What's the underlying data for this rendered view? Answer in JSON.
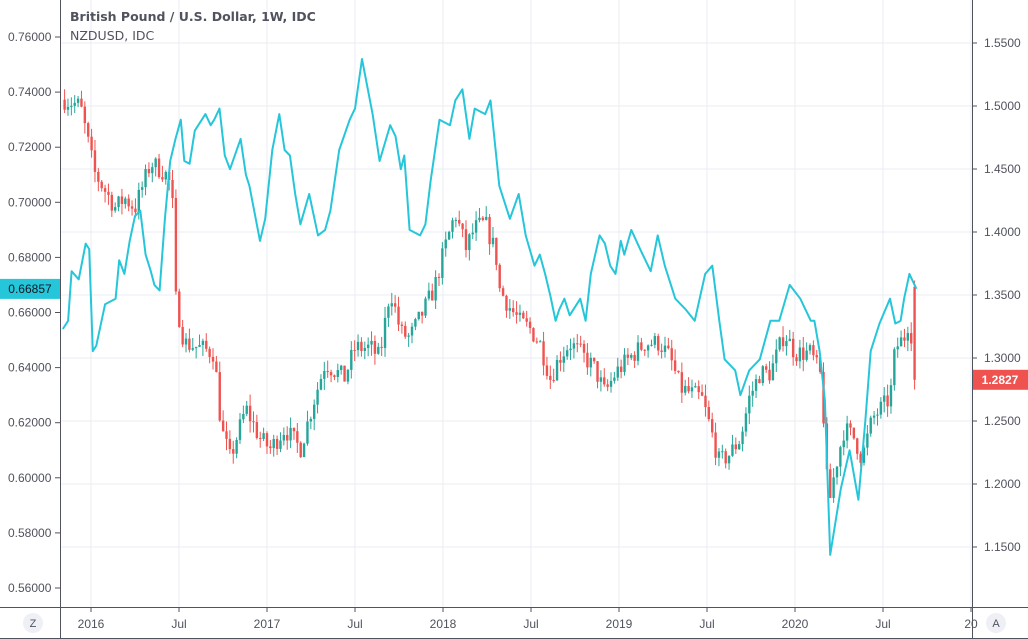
{
  "legend": {
    "main": "British Pound / U.S. Dollar, 1W, IDC",
    "overlay": "NZDUSD, IDC"
  },
  "buttons": {
    "left": "Z",
    "right": "A"
  },
  "colors": {
    "up": "#26a69a",
    "down": "#ef5350",
    "line": "#26c6da",
    "grid": "#e9eef3",
    "axis": "#50535e"
  },
  "chart_data": {
    "type": "candlestick+line",
    "title": "British Pound / U.S. Dollar, 1W, IDC",
    "x_ticks": [
      {
        "label": "2016",
        "t": 2016.0
      },
      {
        "label": "Jul",
        "t": 2016.5
      },
      {
        "label": "2017",
        "t": 2017.0
      },
      {
        "label": "Jul",
        "t": 2017.5
      },
      {
        "label": "2018",
        "t": 2018.0
      },
      {
        "label": "Jul",
        "t": 2018.5
      },
      {
        "label": "2019",
        "t": 2019.0
      },
      {
        "label": "Jul",
        "t": 2019.5
      },
      {
        "label": "2020",
        "t": 2020.0
      },
      {
        "label": "Jul",
        "t": 2020.5
      },
      {
        "label": "20",
        "t": 2021.0
      }
    ],
    "xlim": [
      2015.82,
      2021.05
    ],
    "left_axis": {
      "ticks": [
        "0.76000",
        "0.74000",
        "0.72000",
        "0.70000",
        "0.68000",
        "0.66000",
        "0.64000",
        "0.62000",
        "0.60000",
        "0.58000",
        "0.56000"
      ],
      "ylim": [
        0.56,
        0.76
      ]
    },
    "right_axis": {
      "ticks": [
        "1.5500",
        "1.5000",
        "1.4500",
        "1.4000",
        "1.3500",
        "1.3000",
        "1.2500",
        "1.2000",
        "1.1500"
      ],
      "ylim": [
        1.15,
        1.55
      ]
    },
    "series": [
      {
        "name": "GBPUSD",
        "type": "candlestick",
        "axis": "right",
        "interval": "1W",
        "last_label": "1.2827",
        "close_path": [
          [
            2015.85,
            1.505
          ],
          [
            2015.94,
            1.5
          ],
          [
            2016.02,
            1.447
          ],
          [
            2016.14,
            1.419
          ],
          [
            2016.19,
            1.427
          ],
          [
            2016.25,
            1.419
          ],
          [
            2016.34,
            1.455
          ],
          [
            2016.42,
            1.447
          ],
          [
            2016.46,
            1.435
          ],
          [
            2016.48,
            1.348
          ],
          [
            2016.53,
            1.312
          ],
          [
            2016.62,
            1.308
          ],
          [
            2016.7,
            1.304
          ],
          [
            2016.74,
            1.244
          ],
          [
            2016.79,
            1.22
          ],
          [
            2016.88,
            1.26
          ],
          [
            2016.96,
            1.236
          ],
          [
            2017.02,
            1.228
          ],
          [
            2017.1,
            1.244
          ],
          [
            2017.19,
            1.228
          ],
          [
            2017.27,
            1.268
          ],
          [
            2017.33,
            1.296
          ],
          [
            2017.44,
            1.284
          ],
          [
            2017.5,
            1.308
          ],
          [
            2017.59,
            1.308
          ],
          [
            2017.64,
            1.3
          ],
          [
            2017.7,
            1.355
          ],
          [
            2017.76,
            1.32
          ],
          [
            2017.81,
            1.316
          ],
          [
            2017.87,
            1.332
          ],
          [
            2017.95,
            1.355
          ],
          [
            2018.01,
            1.387
          ],
          [
            2018.07,
            1.415
          ],
          [
            2018.13,
            1.387
          ],
          [
            2018.18,
            1.403
          ],
          [
            2018.24,
            1.407
          ],
          [
            2018.3,
            1.383
          ],
          [
            2018.32,
            1.355
          ],
          [
            2018.38,
            1.34
          ],
          [
            2018.44,
            1.328
          ],
          [
            2018.49,
            1.324
          ],
          [
            2018.55,
            1.312
          ],
          [
            2018.61,
            1.284
          ],
          [
            2018.66,
            1.3
          ],
          [
            2018.72,
            1.312
          ],
          [
            2018.78,
            1.304
          ],
          [
            2018.86,
            1.292
          ],
          [
            2018.92,
            1.272
          ],
          [
            2018.98,
            1.288
          ],
          [
            2019.06,
            1.3
          ],
          [
            2019.15,
            1.312
          ],
          [
            2019.23,
            1.312
          ],
          [
            2019.29,
            1.3
          ],
          [
            2019.35,
            1.276
          ],
          [
            2019.47,
            1.268
          ],
          [
            2019.52,
            1.244
          ],
          [
            2019.57,
            1.217
          ],
          [
            2019.63,
            1.224
          ],
          [
            2019.69,
            1.236
          ],
          [
            2019.74,
            1.268
          ],
          [
            2019.8,
            1.288
          ],
          [
            2019.86,
            1.288
          ],
          [
            2019.94,
            1.32
          ],
          [
            2020.0,
            1.304
          ],
          [
            2020.09,
            1.304
          ],
          [
            2020.15,
            1.284
          ],
          [
            2020.19,
            1.181
          ],
          [
            2020.23,
            1.213
          ],
          [
            2020.28,
            1.244
          ],
          [
            2020.34,
            1.236
          ],
          [
            2020.38,
            1.22
          ],
          [
            2020.44,
            1.252
          ],
          [
            2020.49,
            1.26
          ],
          [
            2020.54,
            1.268
          ],
          [
            2020.57,
            1.308
          ],
          [
            2020.62,
            1.316
          ],
          [
            2020.65,
            1.332
          ],
          [
            2020.69,
            1.2827
          ]
        ]
      },
      {
        "name": "NZDUSD",
        "type": "line",
        "axis": "left",
        "last_label": "0.66857",
        "points": [
          [
            2015.84,
            0.654
          ],
          [
            2015.87,
            0.657
          ],
          [
            2015.89,
            0.675
          ],
          [
            2015.93,
            0.672
          ],
          [
            2015.97,
            0.685
          ],
          [
            2015.99,
            0.683
          ],
          [
            2016.01,
            0.646
          ],
          [
            2016.03,
            0.648
          ],
          [
            2016.08,
            0.663
          ],
          [
            2016.14,
            0.665
          ],
          [
            2016.16,
            0.679
          ],
          [
            2016.19,
            0.674
          ],
          [
            2016.22,
            0.686
          ],
          [
            2016.25,
            0.695
          ],
          [
            2016.28,
            0.697
          ],
          [
            2016.31,
            0.681
          ],
          [
            2016.34,
            0.675
          ],
          [
            2016.36,
            0.67
          ],
          [
            2016.39,
            0.668
          ],
          [
            2016.42,
            0.694
          ],
          [
            2016.45,
            0.715
          ],
          [
            2016.48,
            0.723
          ],
          [
            2016.51,
            0.73
          ],
          [
            2016.53,
            0.715
          ],
          [
            2016.56,
            0.714
          ],
          [
            2016.59,
            0.726
          ],
          [
            2016.65,
            0.732
          ],
          [
            2016.68,
            0.728
          ],
          [
            2016.7,
            0.73
          ],
          [
            2016.73,
            0.734
          ],
          [
            2016.76,
            0.717
          ],
          [
            2016.79,
            0.712
          ],
          [
            2016.85,
            0.723
          ],
          [
            2016.88,
            0.71
          ],
          [
            2016.9,
            0.706
          ],
          [
            2016.96,
            0.686
          ],
          [
            2016.99,
            0.694
          ],
          [
            2017.03,
            0.719
          ],
          [
            2017.07,
            0.732
          ],
          [
            2017.1,
            0.719
          ],
          [
            2017.13,
            0.717
          ],
          [
            2017.16,
            0.703
          ],
          [
            2017.19,
            0.692
          ],
          [
            2017.24,
            0.703
          ],
          [
            2017.29,
            0.688
          ],
          [
            2017.33,
            0.69
          ],
          [
            2017.36,
            0.697
          ],
          [
            2017.41,
            0.719
          ],
          [
            2017.47,
            0.73
          ],
          [
            2017.5,
            0.734
          ],
          [
            2017.54,
            0.752
          ],
          [
            2017.6,
            0.732
          ],
          [
            2017.64,
            0.715
          ],
          [
            2017.7,
            0.728
          ],
          [
            2017.73,
            0.724
          ],
          [
            2017.76,
            0.712
          ],
          [
            2017.78,
            0.717
          ],
          [
            2017.81,
            0.69
          ],
          [
            2017.87,
            0.688
          ],
          [
            2017.9,
            0.692
          ],
          [
            2017.93,
            0.708
          ],
          [
            2017.98,
            0.73
          ],
          [
            2018.04,
            0.728
          ],
          [
            2018.07,
            0.737
          ],
          [
            2018.11,
            0.741
          ],
          [
            2018.15,
            0.723
          ],
          [
            2018.18,
            0.734
          ],
          [
            2018.24,
            0.732
          ],
          [
            2018.27,
            0.737
          ],
          [
            2018.32,
            0.706
          ],
          [
            2018.38,
            0.694
          ],
          [
            2018.43,
            0.703
          ],
          [
            2018.47,
            0.688
          ],
          [
            2018.52,
            0.677
          ],
          [
            2018.55,
            0.681
          ],
          [
            2018.58,
            0.674
          ],
          [
            2018.61,
            0.666
          ],
          [
            2018.64,
            0.657
          ],
          [
            2018.66,
            0.661
          ],
          [
            2018.69,
            0.665
          ],
          [
            2018.72,
            0.659
          ],
          [
            2018.78,
            0.665
          ],
          [
            2018.81,
            0.657
          ],
          [
            2018.84,
            0.674
          ],
          [
            2018.89,
            0.688
          ],
          [
            2018.92,
            0.685
          ],
          [
            2018.95,
            0.677
          ],
          [
            2018.98,
            0.674
          ],
          [
            2019.01,
            0.686
          ],
          [
            2019.03,
            0.681
          ],
          [
            2019.07,
            0.69
          ],
          [
            2019.12,
            0.683
          ],
          [
            2019.18,
            0.675
          ],
          [
            2019.22,
            0.688
          ],
          [
            2019.26,
            0.677
          ],
          [
            2019.32,
            0.665
          ],
          [
            2019.38,
            0.661
          ],
          [
            2019.43,
            0.657
          ],
          [
            2019.49,
            0.674
          ],
          [
            2019.53,
            0.677
          ],
          [
            2019.57,
            0.657
          ],
          [
            2019.6,
            0.643
          ],
          [
            2019.66,
            0.639
          ],
          [
            2019.69,
            0.63
          ],
          [
            2019.74,
            0.639
          ],
          [
            2019.8,
            0.643
          ],
          [
            2019.86,
            0.657
          ],
          [
            2019.91,
            0.657
          ],
          [
            2019.97,
            0.67
          ],
          [
            2020.03,
            0.665
          ],
          [
            2020.09,
            0.657
          ],
          [
            2020.11,
            0.657
          ],
          [
            2020.14,
            0.646
          ],
          [
            2020.17,
            0.628
          ],
          [
            2020.2,
            0.572
          ],
          [
            2020.26,
            0.596
          ],
          [
            2020.31,
            0.61
          ],
          [
            2020.36,
            0.592
          ],
          [
            2020.4,
            0.621
          ],
          [
            2020.43,
            0.646
          ],
          [
            2020.48,
            0.656
          ],
          [
            2020.54,
            0.665
          ],
          [
            2020.57,
            0.656
          ],
          [
            2020.6,
            0.657
          ],
          [
            2020.62,
            0.665
          ],
          [
            2020.65,
            0.674
          ],
          [
            2020.69,
            0.6686
          ]
        ]
      }
    ]
  }
}
